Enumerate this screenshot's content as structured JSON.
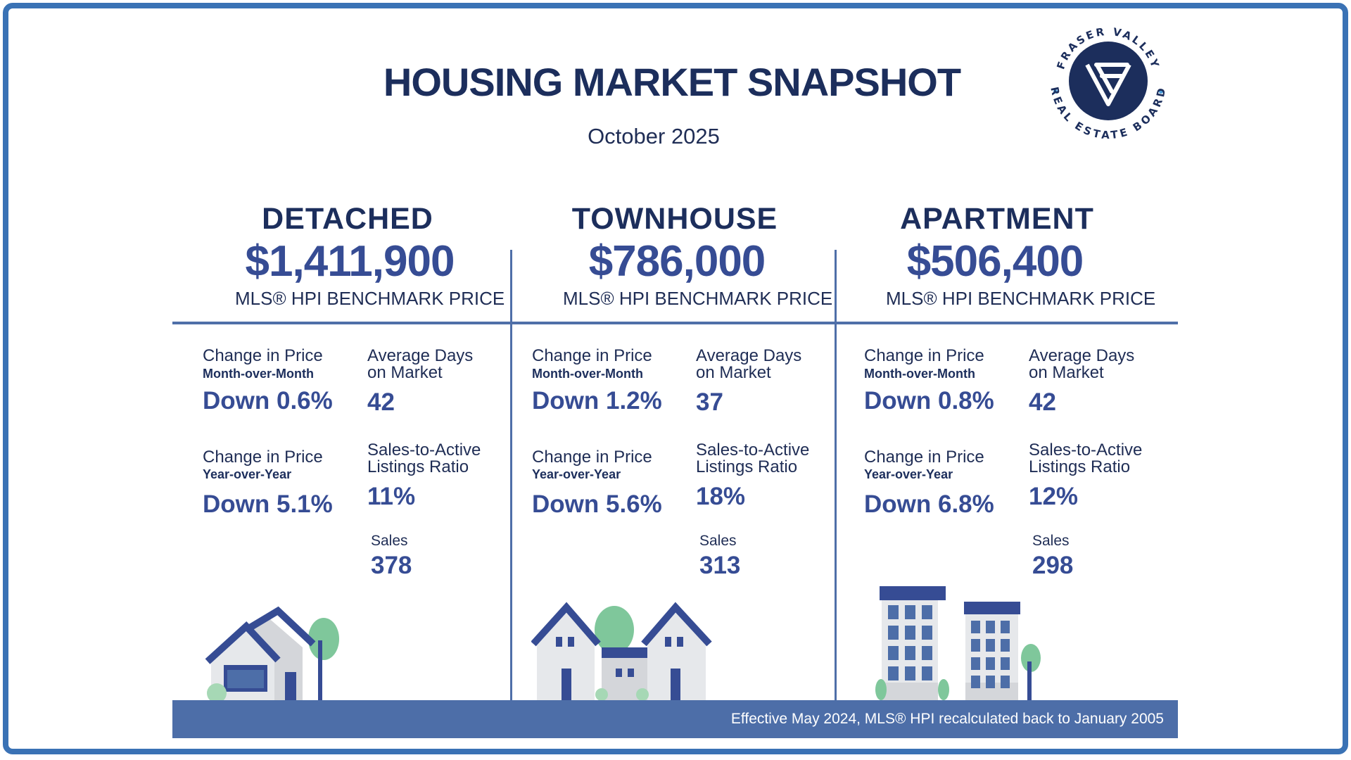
{
  "header": {
    "title": "HOUSING MARKET SNAPSHOT",
    "date": "October 2025"
  },
  "logo": {
    "text_top": "FRASER VALLEY",
    "text_bottom": "REAL ESTATE BOARD",
    "colors": {
      "navy": "#1c2e5c",
      "dot": "#4a9fdc"
    }
  },
  "columns": [
    {
      "name": "DETACHED",
      "price": "$1,411,900",
      "price_label": "MLS® HPI BENCHMARK PRICE",
      "mom_label": "Change in Price",
      "mom_sub": "Month-over-Month",
      "mom_value": "Down 0.6%",
      "dom_label_1": "Average Days",
      "dom_label_2": "on Market",
      "dom_value": "42",
      "yoy_label": "Change in Price",
      "yoy_sub": "Year-over-Year",
      "yoy_value": "Down 5.1%",
      "sal_label_1": "Sales-to-Active",
      "sal_label_2": "Listings Ratio",
      "sal_value": "11%",
      "sales_label": "Sales",
      "sales_value": "378"
    },
    {
      "name": "TOWNHOUSE",
      "price": "$786,000",
      "price_label": "MLS® HPI BENCHMARK PRICE",
      "mom_label": "Change in Price",
      "mom_sub": "Month-over-Month",
      "mom_value": "Down 1.2%",
      "dom_label_1": "Average Days",
      "dom_label_2": "on Market",
      "dom_value": "37",
      "yoy_label": "Change in Price",
      "yoy_sub": "Year-over-Year",
      "yoy_value": "Down 5.6%",
      "sal_label_1": "Sales-to-Active",
      "sal_label_2": "Listings Ratio",
      "sal_value": "18%",
      "sales_label": "Sales",
      "sales_value": "313"
    },
    {
      "name": "APARTMENT",
      "price": "$506,400",
      "price_label": "MLS® HPI BENCHMARK PRICE",
      "mom_label": "Change in Price",
      "mom_sub": "Month-over-Month",
      "mom_value": "Down 0.8%",
      "dom_label_1": "Average Days",
      "dom_label_2": "on Market",
      "dom_value": "42",
      "yoy_label": "Change in Price",
      "yoy_sub": "Year-over-Year",
      "yoy_value": "Down 6.8%",
      "sal_label_1": "Sales-to-Active",
      "sal_label_2": "Listings Ratio",
      "sal_value": "12%",
      "sales_label": "Sales",
      "sales_value": "298"
    }
  ],
  "footer": {
    "note": "Effective May 2024, MLS® HPI recalculated back to January 2005"
  },
  "colors": {
    "frame": "#3a72b5",
    "heading": "#1c2e5c",
    "value": "#364c94",
    "rule": "#4f6fa8",
    "footer_bg": "#4d6ea8",
    "tree": "#7fc79b"
  }
}
